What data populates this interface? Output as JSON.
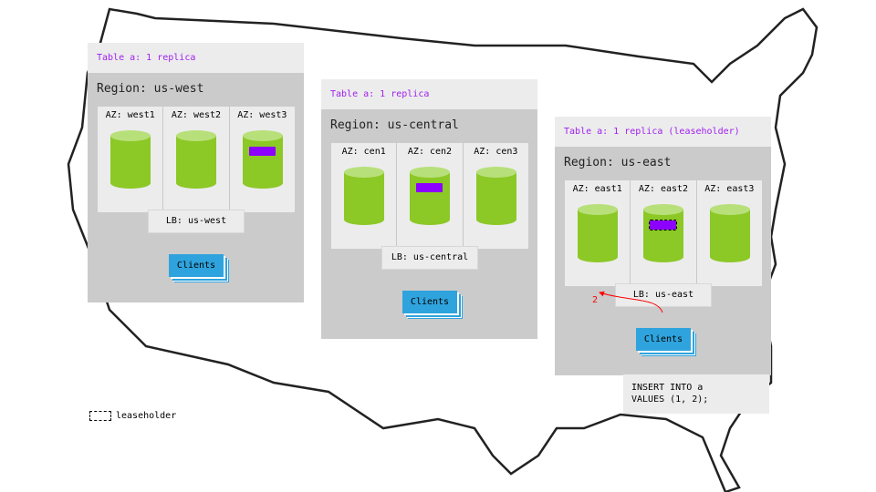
{
  "regions": [
    {
      "table": "Table a: 1 replica",
      "region": "Region: us-west",
      "azs": [
        "AZ: west1",
        "AZ: west2",
        "AZ: west3"
      ],
      "replica_az": 2,
      "leaseholder": false,
      "lb": "LB: us-west",
      "clients": "Clients"
    },
    {
      "table": "Table a: 1 replica",
      "region": "Region: us-central",
      "azs": [
        "AZ: cen1",
        "AZ: cen2",
        "AZ: cen3"
      ],
      "replica_az": 1,
      "leaseholder": false,
      "lb": "LB: us-central",
      "clients": "Clients"
    },
    {
      "table": "Table a: 1 replica (leaseholder)",
      "region": "Region: us-east",
      "azs": [
        "AZ: east1",
        "AZ: east2",
        "AZ: east3"
      ],
      "replica_az": 1,
      "leaseholder": true,
      "lb": "LB: us-east",
      "clients": "Clients"
    }
  ],
  "arrow_label": "2",
  "query": "INSERT INTO a\nVALUES (1, 2);",
  "legend": "leaseholder",
  "colors": {
    "replica": "#8b00ff",
    "node": "#8cc826",
    "clients": "#2fa3dd",
    "table_label": "#a020f0",
    "arrow": "#ff0000"
  }
}
